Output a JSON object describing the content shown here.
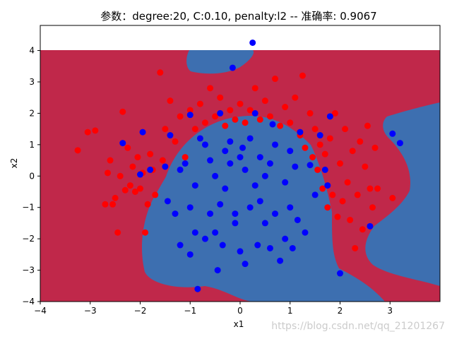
{
  "watermark": "https://blog.csdn.net/qq_21201267",
  "chart_data": {
    "type": "scatter",
    "title": "参数：degree:20, C:0.10, penalty:l2 -- 准确率: 0.9067",
    "xlabel": "x1",
    "ylabel": "x2",
    "xlim": [
      -4,
      4
    ],
    "ylim": [
      -4,
      4.8
    ],
    "x_ticks": [
      -4,
      -3,
      -2,
      -1,
      0,
      1,
      2,
      3
    ],
    "y_ticks": [
      -4,
      -3,
      -2,
      -1,
      0,
      1,
      2,
      3,
      4
    ],
    "region_colors": {
      "class_0": "#c0284a",
      "class_1": "#3d6fb0"
    },
    "series": [
      {
        "color": "#ff0000",
        "points": [
          [
            -3.25,
            0.82
          ],
          [
            -3.05,
            1.4
          ],
          [
            -2.9,
            1.45
          ],
          [
            -2.7,
            -0.9
          ],
          [
            -2.65,
            0.1
          ],
          [
            -2.6,
            0.5
          ],
          [
            -2.55,
            -0.9
          ],
          [
            -2.5,
            -0.7
          ],
          [
            -2.45,
            -1.8
          ],
          [
            -2.4,
            0.0
          ],
          [
            -2.35,
            2.05
          ],
          [
            -2.3,
            -0.45
          ],
          [
            -2.25,
            0.9
          ],
          [
            -2.2,
            -0.3
          ],
          [
            -2.15,
            0.3
          ],
          [
            -2.1,
            -0.5
          ],
          [
            -2.05,
            0.6
          ],
          [
            -2.0,
            -0.4
          ],
          [
            -1.95,
            0.1
          ],
          [
            -1.9,
            -1.8
          ],
          [
            -1.85,
            -0.9
          ],
          [
            -1.8,
            0.7
          ],
          [
            -1.75,
            0.2
          ],
          [
            -1.7,
            -0.6
          ],
          [
            -1.6,
            3.3
          ],
          [
            -1.55,
            0.5
          ],
          [
            -1.5,
            1.5
          ],
          [
            -1.4,
            2.4
          ],
          [
            -1.3,
            1.1
          ],
          [
            -1.2,
            1.9
          ],
          [
            -1.1,
            0.6
          ],
          [
            -1.0,
            2.1
          ],
          [
            -0.9,
            1.5
          ],
          [
            -0.8,
            2.3
          ],
          [
            -0.7,
            1.7
          ],
          [
            -0.6,
            2.8
          ],
          [
            -0.5,
            1.9
          ],
          [
            -0.4,
            2.5
          ],
          [
            -0.3,
            1.6
          ],
          [
            -0.2,
            2.1
          ],
          [
            -0.1,
            1.8
          ],
          [
            0.0,
            2.3
          ],
          [
            0.1,
            1.7
          ],
          [
            0.2,
            2.1
          ],
          [
            0.3,
            2.8
          ],
          [
            0.4,
            1.8
          ],
          [
            0.5,
            2.4
          ],
          [
            0.6,
            1.9
          ],
          [
            0.7,
            3.1
          ],
          [
            0.8,
            1.6
          ],
          [
            0.9,
            2.2
          ],
          [
            1.0,
            1.7
          ],
          [
            1.1,
            2.5
          ],
          [
            1.2,
            1.3
          ],
          [
            1.25,
            3.2
          ],
          [
            1.3,
            0.9
          ],
          [
            1.4,
            2.0
          ],
          [
            1.45,
            0.6
          ],
          [
            1.5,
            1.5
          ],
          [
            1.55,
            0.2
          ],
          [
            1.6,
            1.0
          ],
          [
            1.65,
            -0.4
          ],
          [
            1.7,
            0.7
          ],
          [
            1.75,
            -1.0
          ],
          [
            1.8,
            1.2
          ],
          [
            1.85,
            -0.6
          ],
          [
            1.9,
            2.0
          ],
          [
            1.95,
            -1.3
          ],
          [
            2.0,
            0.4
          ],
          [
            2.05,
            -0.8
          ],
          [
            2.1,
            1.5
          ],
          [
            2.15,
            -0.2
          ],
          [
            2.2,
            -1.4
          ],
          [
            2.25,
            0.8
          ],
          [
            2.3,
            -2.3
          ],
          [
            2.35,
            -0.6
          ],
          [
            2.4,
            1.1
          ],
          [
            2.45,
            -1.7
          ],
          [
            2.5,
            0.3
          ],
          [
            2.55,
            1.6
          ],
          [
            2.6,
            -0.4
          ],
          [
            2.65,
            -1.0
          ],
          [
            2.7,
            0.9
          ],
          [
            2.75,
            -0.4
          ],
          [
            3.05,
            -0.7
          ]
        ]
      },
      {
        "color": "#0000ff",
        "points": [
          [
            0.25,
            4.25
          ],
          [
            -0.15,
            3.45
          ],
          [
            -2.35,
            1.05
          ],
          [
            -2.0,
            0.05
          ],
          [
            -1.95,
            1.4
          ],
          [
            -1.8,
            0.2
          ],
          [
            -1.5,
            0.3
          ],
          [
            -1.45,
            -0.8
          ],
          [
            -1.4,
            1.3
          ],
          [
            -1.3,
            -1.2
          ],
          [
            -1.2,
            -2.2
          ],
          [
            -1.1,
            0.4
          ],
          [
            -1.0,
            -2.5
          ],
          [
            -1.0,
            1.95
          ],
          [
            -0.9,
            -1.8
          ],
          [
            -0.85,
            -3.6
          ],
          [
            -0.8,
            1.2
          ],
          [
            -0.7,
            -2.0
          ],
          [
            -0.6,
            -1.2
          ],
          [
            -0.5,
            -1.8
          ],
          [
            -0.45,
            -3.0
          ],
          [
            -0.4,
            2.0
          ],
          [
            -0.35,
            -2.2
          ],
          [
            -0.2,
            0.4
          ],
          [
            -0.1,
            -1.5
          ],
          [
            0.0,
            -2.4
          ],
          [
            0.05,
            0.9
          ],
          [
            0.1,
            -2.8
          ],
          [
            0.2,
            -1.0
          ],
          [
            0.3,
            2.0
          ],
          [
            0.35,
            -2.2
          ],
          [
            0.4,
            0.6
          ],
          [
            0.5,
            -1.5
          ],
          [
            0.6,
            -2.3
          ],
          [
            0.65,
            1.65
          ],
          [
            0.7,
            -1.2
          ],
          [
            0.8,
            -2.7
          ],
          [
            0.9,
            -2.0
          ],
          [
            1.0,
            -1.0
          ],
          [
            1.05,
            -2.3
          ],
          [
            1.15,
            -1.4
          ],
          [
            1.2,
            1.4
          ],
          [
            1.3,
            -1.8
          ],
          [
            1.4,
            0.35
          ],
          [
            1.5,
            -0.6
          ],
          [
            1.6,
            1.3
          ],
          [
            1.7,
            0.2
          ],
          [
            1.75,
            -0.3
          ],
          [
            1.8,
            1.9
          ],
          [
            2.0,
            -3.1
          ],
          [
            2.6,
            -1.6
          ],
          [
            3.05,
            1.35
          ],
          [
            3.2,
            1.05
          ],
          [
            -0.5,
            0.0
          ],
          [
            -0.3,
            -0.4
          ],
          [
            0.1,
            0.2
          ],
          [
            0.3,
            -0.3
          ],
          [
            -0.6,
            0.5
          ],
          [
            0.6,
            0.4
          ],
          [
            -0.2,
            1.1
          ],
          [
            0.2,
            1.2
          ],
          [
            -0.9,
            -0.3
          ],
          [
            0.9,
            -0.2
          ],
          [
            -0.4,
            -0.9
          ],
          [
            0.4,
            -0.8
          ],
          [
            -1.2,
            0.2
          ],
          [
            1.1,
            0.3
          ],
          [
            -0.7,
            1.0
          ],
          [
            0.7,
            1.0
          ],
          [
            -0.1,
            -1.2
          ],
          [
            -1.0,
            -1.0
          ],
          [
            1.0,
            0.8
          ],
          [
            0.0,
            0.6
          ],
          [
            -0.3,
            0.8
          ],
          [
            0.5,
            0.0
          ]
        ]
      }
    ]
  }
}
